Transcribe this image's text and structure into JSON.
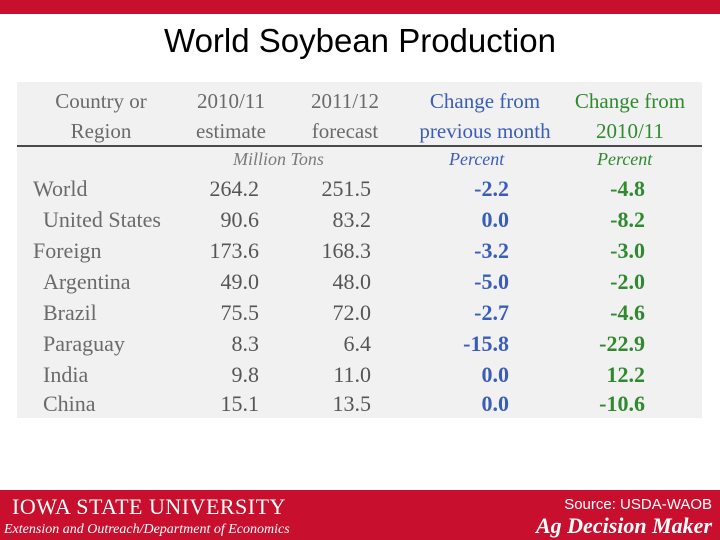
{
  "slide": {
    "title": "World Soybean Production",
    "colors": {
      "accent_red": "#c8102e",
      "blue": "#3a5db8",
      "green": "#2f8a2f",
      "table_bg": "#f1f1f1"
    }
  },
  "table": {
    "headers": {
      "country_line1": "Country or",
      "country_line2": "Region",
      "y1_line1": "2010/11",
      "y1_line2": "estimate",
      "y2_line1": "2011/12",
      "y2_line2": "forecast",
      "chg_line1": "Change from",
      "chg_line2": "previous month",
      "chg10_line1": "Change from",
      "chg10_line2": "2010/11"
    },
    "units": {
      "tons": "Million Tons",
      "pct1": "Percent",
      "pct2": "Percent"
    },
    "rows": [
      {
        "name": "World",
        "v2010": "264.2",
        "v2011": "251.5",
        "chg_month": "-2.2",
        "chg_year": "-4.8"
      },
      {
        "name": "United States",
        "v2010": "90.6",
        "v2011": "83.2",
        "chg_month": "0.0",
        "chg_year": "-8.2"
      },
      {
        "name": "Foreign",
        "v2010": "173.6",
        "v2011": "168.3",
        "chg_month": "-3.2",
        "chg_year": "-3.0"
      },
      {
        "name": "Argentina",
        "v2010": "49.0",
        "v2011": "48.0",
        "chg_month": "-5.0",
        "chg_year": "-2.0"
      },
      {
        "name": "Brazil",
        "v2010": "75.5",
        "v2011": "72.0",
        "chg_month": "-2.7",
        "chg_year": "-4.6"
      },
      {
        "name": "Paraguay",
        "v2010": "8.3",
        "v2011": "6.4",
        "chg_month": "-15.8",
        "chg_year": "-22.9"
      },
      {
        "name": "India",
        "v2010": "9.8",
        "v2011": "11.0",
        "chg_month": "0.0",
        "chg_year": "12.2"
      },
      {
        "name": "China",
        "v2010": "15.1",
        "v2011": "13.5",
        "chg_month": "0.0",
        "chg_year": "-10.6"
      }
    ]
  },
  "footer": {
    "university": "IOWA STATE UNIVERSITY",
    "department": "Extension and Outreach/Department of Economics",
    "source": "Source: USDA-WAOB",
    "brand": "Ag Decision Maker"
  }
}
